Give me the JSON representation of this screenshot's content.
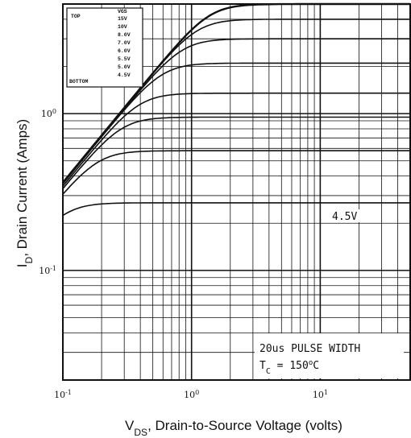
{
  "chart_data": {
    "type": "line",
    "x_scale": "log",
    "y_scale": "log",
    "xlim": [
      0.1,
      50
    ],
    "ylim": [
      0.02,
      5
    ],
    "grid": true,
    "xlabel": {
      "pre": "V",
      "sub": "DS",
      "post": ", Drain-to-Source Voltage (volts)"
    },
    "ylabel": {
      "pre": "I",
      "sub": "D",
      "post": ", Drain Current (Amps)"
    },
    "x_ticks": [
      {
        "value": 0.1,
        "label": "10",
        "exp": "-1"
      },
      {
        "value": 1,
        "label": "10",
        "exp": "0"
      },
      {
        "value": 10,
        "label": "10",
        "exp": "1"
      }
    ],
    "y_ticks": [
      {
        "value": 0.1,
        "label": "10",
        "exp": "-1"
      },
      {
        "value": 1,
        "label": "10",
        "exp": "0"
      }
    ],
    "legend": {
      "position": "top-left",
      "header": "VGS",
      "top_label": "TOP",
      "bottom_label": "BOTTOM",
      "entries": [
        "15V",
        "10V",
        "8.0V",
        "7.0V",
        "6.0V",
        "5.5V",
        "5.0V",
        "4.5V"
      ]
    },
    "series": [
      {
        "name": "15V",
        "ron": 0.275,
        "isat": 5.0,
        "values": [
          [
            0.1,
            0.036
          ],
          [
            0.2,
            0.073
          ],
          [
            0.5,
            0.18
          ],
          [
            1,
            0.36
          ],
          [
            2,
            0.73
          ],
          [
            5,
            1.8
          ],
          [
            10,
            3.4
          ],
          [
            20,
            4.8
          ],
          [
            50,
            5.0
          ]
        ]
      },
      {
        "name": "10V",
        "ron": 0.275,
        "isat": 4.0,
        "values": [
          [
            0.1,
            0.036
          ],
          [
            0.2,
            0.073
          ],
          [
            0.5,
            0.18
          ],
          [
            1,
            0.36
          ],
          [
            2,
            0.72
          ],
          [
            5,
            1.75
          ],
          [
            10,
            3.1
          ],
          [
            20,
            3.9
          ],
          [
            50,
            4.0
          ]
        ]
      },
      {
        "name": "8.0V",
        "ron": 0.28,
        "isat": 3.0,
        "values": [
          [
            0.1,
            0.035
          ],
          [
            0.2,
            0.071
          ],
          [
            0.5,
            0.18
          ],
          [
            1,
            0.35
          ],
          [
            2,
            0.7
          ],
          [
            5,
            1.7
          ],
          [
            10,
            2.7
          ],
          [
            20,
            3.0
          ],
          [
            50,
            3.0
          ]
        ]
      },
      {
        "name": "7.0V",
        "ron": 0.28,
        "isat": 2.1,
        "values": [
          [
            0.1,
            0.035
          ],
          [
            0.2,
            0.071
          ],
          [
            0.5,
            0.18
          ],
          [
            1,
            0.35
          ],
          [
            2,
            0.69
          ],
          [
            5,
            1.5
          ],
          [
            10,
            2.0
          ],
          [
            20,
            2.1
          ],
          [
            50,
            2.1
          ]
        ]
      },
      {
        "name": "6.0V",
        "ron": 0.29,
        "isat": 1.35,
        "values": [
          [
            0.1,
            0.034
          ],
          [
            0.2,
            0.069
          ],
          [
            0.5,
            0.17
          ],
          [
            1,
            0.34
          ],
          [
            2,
            0.65
          ],
          [
            5,
            1.2
          ],
          [
            10,
            1.34
          ],
          [
            20,
            1.35
          ],
          [
            50,
            1.35
          ]
        ]
      },
      {
        "name": "5.5V",
        "ron": 0.3,
        "isat": 0.95,
        "values": [
          [
            0.1,
            0.033
          ],
          [
            0.2,
            0.066
          ],
          [
            0.5,
            0.16
          ],
          [
            1,
            0.33
          ],
          [
            2,
            0.6
          ],
          [
            5,
            0.93
          ],
          [
            10,
            0.95
          ],
          [
            20,
            0.95
          ],
          [
            50,
            0.95
          ]
        ]
      },
      {
        "name": "5.0V",
        "ron": 0.32,
        "isat": 0.58,
        "values": [
          [
            0.1,
            0.031
          ],
          [
            0.2,
            0.062
          ],
          [
            0.5,
            0.15
          ],
          [
            1,
            0.3
          ],
          [
            2,
            0.5
          ],
          [
            5,
            0.58
          ],
          [
            10,
            0.58
          ],
          [
            20,
            0.58
          ],
          [
            50,
            0.58
          ]
        ]
      },
      {
        "name": "4.5V",
        "ron": 0.38,
        "isat": 0.27,
        "values": [
          [
            0.1,
            0.026
          ],
          [
            0.2,
            0.052
          ],
          [
            0.5,
            0.12
          ],
          [
            1,
            0.21
          ],
          [
            2,
            0.26
          ],
          [
            5,
            0.27
          ],
          [
            10,
            0.27
          ],
          [
            20,
            0.27
          ],
          [
            50,
            0.27
          ]
        ]
      }
    ],
    "curve_label": {
      "text": "4.5V",
      "at_x": 20,
      "series": "4.5V"
    },
    "annotation": {
      "line1": "20us PULSE WIDTH",
      "line2_pre": "T",
      "line2_sub": "C",
      "line2_post": " = 150",
      "line2_sup": "o",
      "line2_end": "C"
    }
  }
}
